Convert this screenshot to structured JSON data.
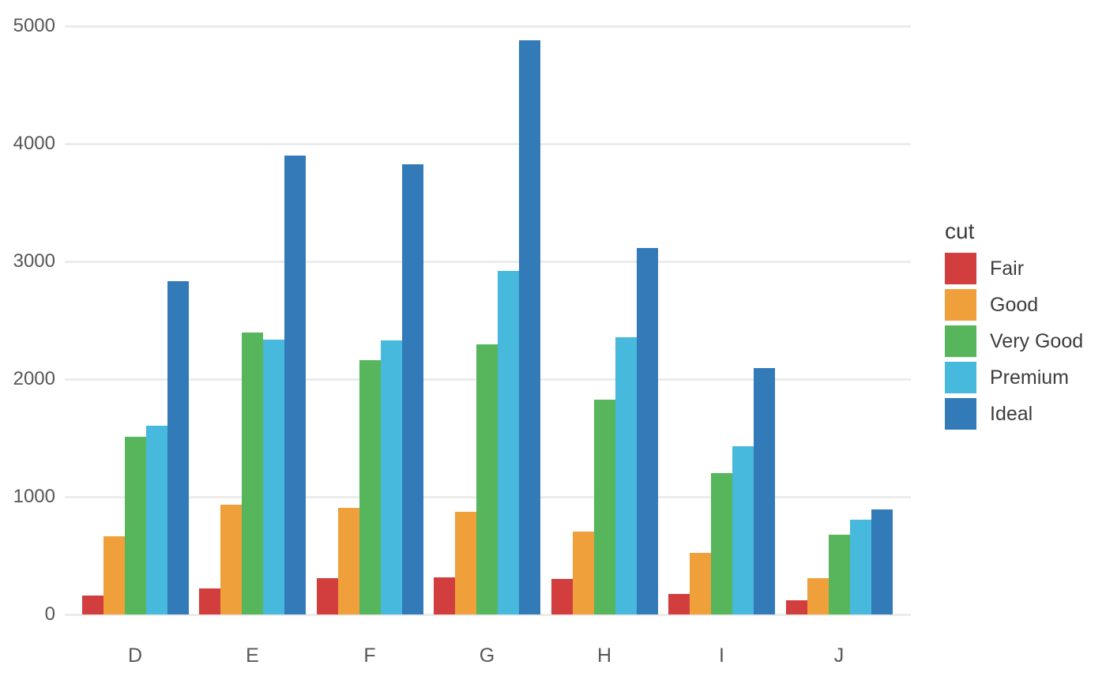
{
  "chart_data": {
    "type": "bar",
    "title": "",
    "xlabel": "",
    "ylabel": "",
    "legend_title": "cut",
    "legend_position": "right",
    "grid": true,
    "categories": [
      "D",
      "E",
      "F",
      "G",
      "H",
      "I",
      "J"
    ],
    "series": [
      {
        "name": "Fair",
        "color": "#d23d3d",
        "values": [
          163,
          224,
          312,
          314,
          303,
          175,
          119
        ]
      },
      {
        "name": "Good",
        "color": "#efa03b",
        "values": [
          662,
          933,
          909,
          871,
          702,
          522,
          307
        ]
      },
      {
        "name": "Very Good",
        "color": "#57b65c",
        "values": [
          1513,
          2400,
          2164,
          2299,
          1824,
          1204,
          678
        ]
      },
      {
        "name": "Premium",
        "color": "#46b9dc",
        "values": [
          1603,
          2337,
          2331,
          2924,
          2360,
          1428,
          808
        ]
      },
      {
        "name": "Ideal",
        "color": "#337ab8",
        "values": [
          2834,
          3903,
          3826,
          4884,
          3115,
          2093,
          896
        ]
      }
    ],
    "y_ticks": [
      0,
      1000,
      2000,
      3000,
      4000,
      5000
    ],
    "ylim": [
      0,
      5090
    ],
    "background_color": "#ffffff",
    "gridline_color": "#ececec",
    "tick_label_color": "#575757",
    "legend_text_color": "#3d3d3d"
  }
}
